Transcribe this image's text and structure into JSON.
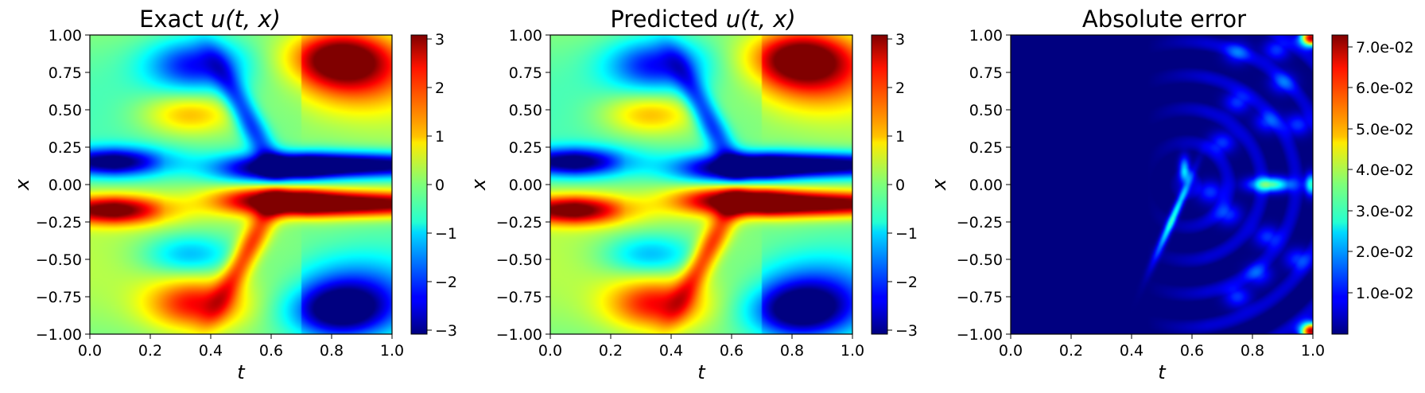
{
  "figure": {
    "panels": [
      {
        "title_plain": "Exact ",
        "title_math": "u(t, x)",
        "xlabel": "t",
        "ylabel": "x",
        "colorbar_ticks": [
          "3",
          "2",
          "1",
          "0",
          "−1",
          "−2",
          "−3"
        ]
      },
      {
        "title_plain": "Predicted ",
        "title_math": "u(t, x)",
        "xlabel": "t",
        "ylabel": "x",
        "colorbar_ticks": [
          "3",
          "2",
          "1",
          "0",
          "−1",
          "−2",
          "−3"
        ]
      },
      {
        "title_plain": "Absolute error",
        "title_math": "",
        "xlabel": "t",
        "ylabel": "x",
        "colorbar_ticks": [
          "7.0e-02",
          "6.0e-02",
          "5.0e-02",
          "4.0e-02",
          "3.0e-02",
          "2.0e-02",
          "1.0e-02"
        ]
      }
    ],
    "x_tick_labels": [
      "0.0",
      "0.2",
      "0.4",
      "0.6",
      "0.8",
      "1.0"
    ],
    "y_tick_labels": [
      "1.00",
      "0.75",
      "0.50",
      "0.25",
      "0.00",
      "−0.25",
      "−0.50",
      "−0.75",
      "−1.00"
    ]
  },
  "chart_data": [
    {
      "type": "heatmap",
      "title": "Exact u(t, x)",
      "xlabel": "t",
      "ylabel": "x",
      "xlim": [
        0,
        1
      ],
      "ylim": [
        -1,
        1
      ],
      "colormap": "jet",
      "color_range": [
        -3.1,
        3.1
      ],
      "colorbar_ticks": [
        3,
        2,
        1,
        0,
        -1,
        -2,
        -3
      ],
      "features": [
        {
          "t": 0.1,
          "x": -0.17,
          "value": 2.2
        },
        {
          "t": 0.1,
          "x": 0.15,
          "value": -2.2
        },
        {
          "t": 0.33,
          "x": 0.47,
          "value": 1.5
        },
        {
          "t": 0.33,
          "x": -0.47,
          "value": -1.5
        },
        {
          "t": 0.35,
          "x": 0.8,
          "value": -2.3
        },
        {
          "t": 0.35,
          "x": -0.8,
          "value": 2.3
        },
        {
          "t": 0.6,
          "x": 0.1,
          "value": -3.0
        },
        {
          "t": 0.6,
          "x": -0.1,
          "value": 3.0
        },
        {
          "t": 0.82,
          "x": 0.85,
          "value": 2.6
        },
        {
          "t": 0.82,
          "x": -0.85,
          "value": -2.6
        },
        {
          "t": 0.85,
          "x": 0.13,
          "value": -2.0
        },
        {
          "t": 0.85,
          "x": -0.13,
          "value": 2.0
        }
      ]
    },
    {
      "type": "heatmap",
      "title": "Predicted u(t, x)",
      "xlabel": "t",
      "ylabel": "x",
      "xlim": [
        0,
        1
      ],
      "ylim": [
        -1,
        1
      ],
      "colormap": "jet",
      "color_range": [
        -3.1,
        3.1
      ],
      "colorbar_ticks": [
        3,
        2,
        1,
        0,
        -1,
        -2,
        -3
      ],
      "features": [
        {
          "t": 0.1,
          "x": -0.17,
          "value": 2.2
        },
        {
          "t": 0.1,
          "x": 0.15,
          "value": -2.2
        },
        {
          "t": 0.33,
          "x": 0.47,
          "value": 1.5
        },
        {
          "t": 0.33,
          "x": -0.47,
          "value": -1.5
        },
        {
          "t": 0.35,
          "x": 0.8,
          "value": -2.3
        },
        {
          "t": 0.35,
          "x": -0.8,
          "value": 2.3
        },
        {
          "t": 0.6,
          "x": 0.1,
          "value": -3.0
        },
        {
          "t": 0.6,
          "x": -0.1,
          "value": 3.0
        },
        {
          "t": 0.82,
          "x": 0.85,
          "value": 2.6
        },
        {
          "t": 0.82,
          "x": -0.85,
          "value": -2.6
        },
        {
          "t": 0.85,
          "x": 0.13,
          "value": -2.0
        },
        {
          "t": 0.85,
          "x": -0.13,
          "value": 2.0
        }
      ]
    },
    {
      "type": "heatmap",
      "title": "Absolute error",
      "xlabel": "t",
      "ylabel": "x",
      "xlim": [
        0,
        1
      ],
      "ylim": [
        -1,
        1
      ],
      "colormap": "jet",
      "color_range": [
        0.0,
        0.073
      ],
      "colorbar_ticks": [
        0.07,
        0.06,
        0.05,
        0.04,
        0.03,
        0.02,
        0.01
      ],
      "features": [
        {
          "t": 0.99,
          "x": 0.97,
          "value": 0.07
        },
        {
          "t": 0.99,
          "x": -0.97,
          "value": 0.07
        },
        {
          "t": 0.86,
          "x": 0.0,
          "value": 0.035
        },
        {
          "t": 0.52,
          "x": -0.3,
          "value": 0.03
        },
        {
          "t": 0.57,
          "x": 0.08,
          "value": 0.025
        },
        {
          "t": 0.99,
          "x": 0.0,
          "value": 0.03
        },
        {
          "t": 0.2,
          "x": 0.0,
          "value": 0.0
        }
      ]
    }
  ]
}
